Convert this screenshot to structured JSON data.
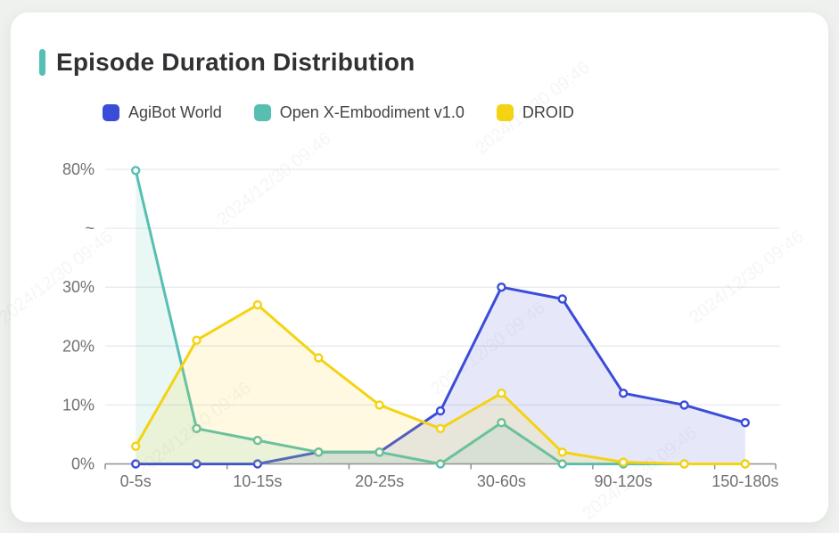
{
  "page": {
    "background": "#eff1ef"
  },
  "card": {
    "background": "#ffffff"
  },
  "header": {
    "title": "Episode Duration Distribution",
    "accent_color": "#54c0b3"
  },
  "legend": [
    {
      "label": "AgiBot World",
      "color": "#3b4cd9"
    },
    {
      "label": "Open X-Embodiment v1.0",
      "color": "#57bfb2"
    },
    {
      "label": "DROID",
      "color": "#f4d312"
    }
  ],
  "watermark": {
    "text": "2024/12/30 09:46"
  },
  "chart_data": {
    "type": "line",
    "title": "Episode Duration Distribution",
    "categories": [
      "0-5s",
      "",
      "10-15s",
      "",
      "20-25s",
      "",
      "30-60s",
      "",
      "90-120s",
      "",
      "150-180s"
    ],
    "series": [
      {
        "name": "AgiBot World",
        "color": "#3b4cd9",
        "values": [
          0,
          0,
          0,
          2,
          2,
          9,
          30,
          28,
          12,
          10,
          7
        ]
      },
      {
        "name": "Open X-Embodiment v1.0",
        "color": "#57bfb2",
        "values": [
          79.5,
          6,
          4,
          2,
          2,
          0,
          7,
          0,
          0,
          0,
          0
        ]
      },
      {
        "name": "DROID",
        "color": "#f4d312",
        "values": [
          3,
          21,
          27,
          18,
          10,
          6,
          12,
          2,
          0.3,
          0,
          0
        ]
      }
    ],
    "yaxis": {
      "tick_labels": [
        "0%",
        "10%",
        "20%",
        "30%",
        "~",
        "80%"
      ],
      "unit": "%",
      "axis_break_between": [
        30,
        80
      ],
      "range_low_segment": [
        0,
        30
      ],
      "range_high_point": 80
    },
    "xlabel": "",
    "ylabel": "",
    "grid": true,
    "area_opacity": 0.13,
    "legend_position": "top",
    "marker": "open-circle"
  }
}
